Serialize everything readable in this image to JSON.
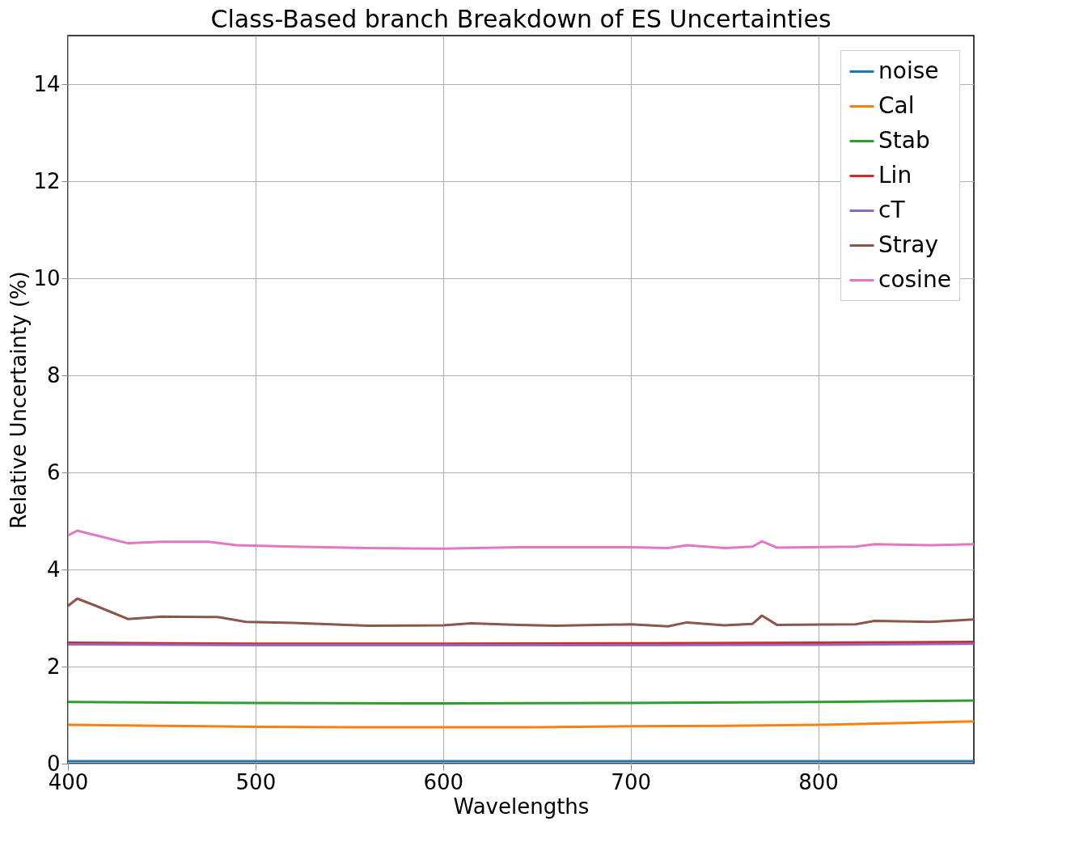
{
  "chart_data": {
    "type": "line",
    "title": "Class-Based branch Breakdown of ES Uncertainties",
    "xlabel": "Wavelengths",
    "ylabel": "Relative Uncertainty (%)",
    "xlim": [
      400,
      883
    ],
    "xticks": [
      400,
      500,
      600,
      700,
      800
    ],
    "ylim": [
      0,
      15
    ],
    "yticks": [
      0,
      2,
      4,
      6,
      8,
      10,
      12,
      14
    ],
    "grid": true,
    "legend": "top right",
    "series": [
      {
        "name": "noise",
        "color": "#1f77b4",
        "x": [
          400,
          500,
          600,
          700,
          800,
          883
        ],
        "values": [
          0.05,
          0.05,
          0.05,
          0.05,
          0.05,
          0.05
        ]
      },
      {
        "name": "Cal",
        "color": "#ff7f0e",
        "x": [
          400,
          450,
          500,
          550,
          600,
          650,
          700,
          750,
          800,
          850,
          883
        ],
        "values": [
          0.8,
          0.78,
          0.76,
          0.75,
          0.75,
          0.75,
          0.77,
          0.78,
          0.8,
          0.84,
          0.87
        ]
      },
      {
        "name": "Stab",
        "color": "#2ca02c",
        "x": [
          400,
          500,
          600,
          700,
          800,
          883
        ],
        "values": [
          1.27,
          1.25,
          1.24,
          1.25,
          1.27,
          1.3
        ]
      },
      {
        "name": "Lin",
        "color": "#d62728",
        "x": [
          400,
          500,
          600,
          700,
          800,
          883
        ],
        "values": [
          2.49,
          2.47,
          2.47,
          2.48,
          2.49,
          2.51
        ]
      },
      {
        "name": "cT",
        "color": "#9467bd",
        "x": [
          400,
          500,
          600,
          700,
          800,
          883
        ],
        "values": [
          2.46,
          2.44,
          2.44,
          2.44,
          2.45,
          2.47
        ]
      },
      {
        "name": "Stray",
        "color": "#8c564b",
        "x": [
          400,
          405,
          415,
          432,
          450,
          480,
          495,
          520,
          560,
          600,
          615,
          640,
          660,
          700,
          720,
          730,
          750,
          765,
          770,
          778,
          820,
          830,
          860,
          883
        ],
        "values": [
          3.25,
          3.4,
          3.25,
          2.98,
          3.03,
          3.02,
          2.92,
          2.9,
          2.84,
          2.85,
          2.89,
          2.86,
          2.84,
          2.87,
          2.83,
          2.91,
          2.85,
          2.88,
          3.05,
          2.86,
          2.87,
          2.94,
          2.92,
          2.97
        ]
      },
      {
        "name": "cosine",
        "color": "#e377c2",
        "x": [
          400,
          405,
          432,
          450,
          475,
          490,
          520,
          560,
          600,
          640,
          700,
          720,
          730,
          750,
          765,
          770,
          778,
          820,
          830,
          860,
          883
        ],
        "values": [
          4.7,
          4.8,
          4.54,
          4.57,
          4.57,
          4.5,
          4.47,
          4.44,
          4.43,
          4.46,
          4.46,
          4.44,
          4.5,
          4.44,
          4.47,
          4.58,
          4.45,
          4.47,
          4.52,
          4.5,
          4.52
        ]
      }
    ]
  }
}
